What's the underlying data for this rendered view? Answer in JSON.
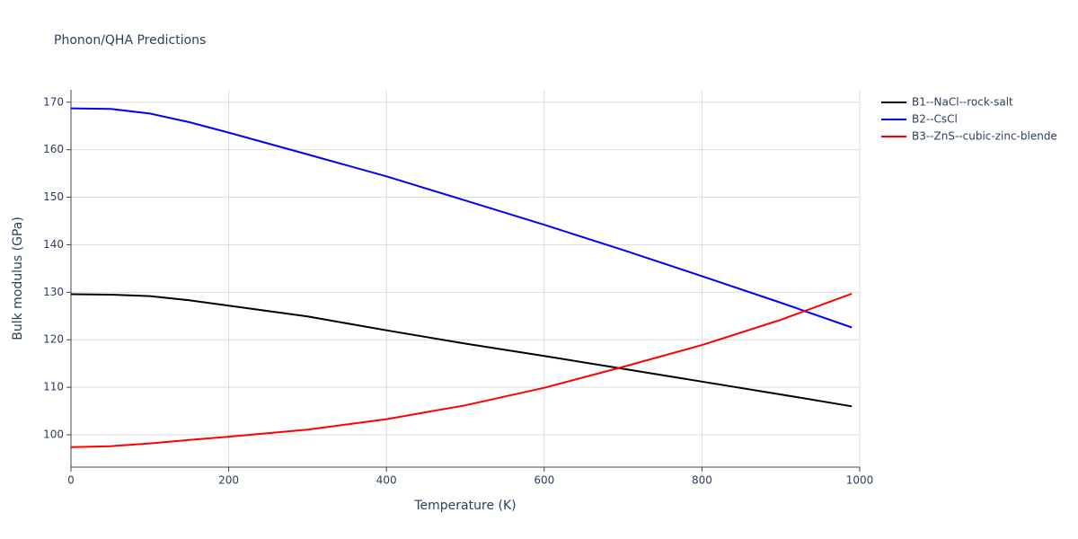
{
  "chart_data": {
    "type": "line",
    "title": "Phonon/QHA Predictions",
    "x_label": "Temperature (K)",
    "y_label": "Bulk modulus (GPa)",
    "x": [
      0,
      50,
      100,
      150,
      200,
      300,
      400,
      500,
      600,
      700,
      800,
      900,
      990
    ],
    "series": [
      {
        "name": "B1--NaCl--rock-salt",
        "color": "#000000",
        "values": [
          129.6,
          129.5,
          129.2,
          128.3,
          127.2,
          124.9,
          122.0,
          119.2,
          116.6,
          113.9,
          111.2,
          108.5,
          106.0
        ]
      },
      {
        "name": "B2--CsCl",
        "color": "#0000ff",
        "values": [
          168.7,
          168.6,
          167.6,
          165.8,
          163.6,
          159.0,
          154.4,
          149.3,
          144.2,
          138.9,
          133.4,
          127.8,
          122.6
        ]
      },
      {
        "name": "B3--ZnS--cubic-zinc-blende",
        "color": "#ff0000",
        "values": [
          97.4,
          97.6,
          98.2,
          98.9,
          99.6,
          101.1,
          103.3,
          106.2,
          109.9,
          114.3,
          118.9,
          124.2,
          129.7
        ]
      }
    ],
    "xlim": [
      0,
      1000
    ],
    "xticks": [
      0,
      200,
      400,
      600,
      800,
      1000
    ],
    "ylim": [
      93.2,
      172.6
    ],
    "yticks": [
      100,
      110,
      120,
      130,
      140,
      150,
      160,
      170
    ],
    "grid": true,
    "legend": "right"
  }
}
